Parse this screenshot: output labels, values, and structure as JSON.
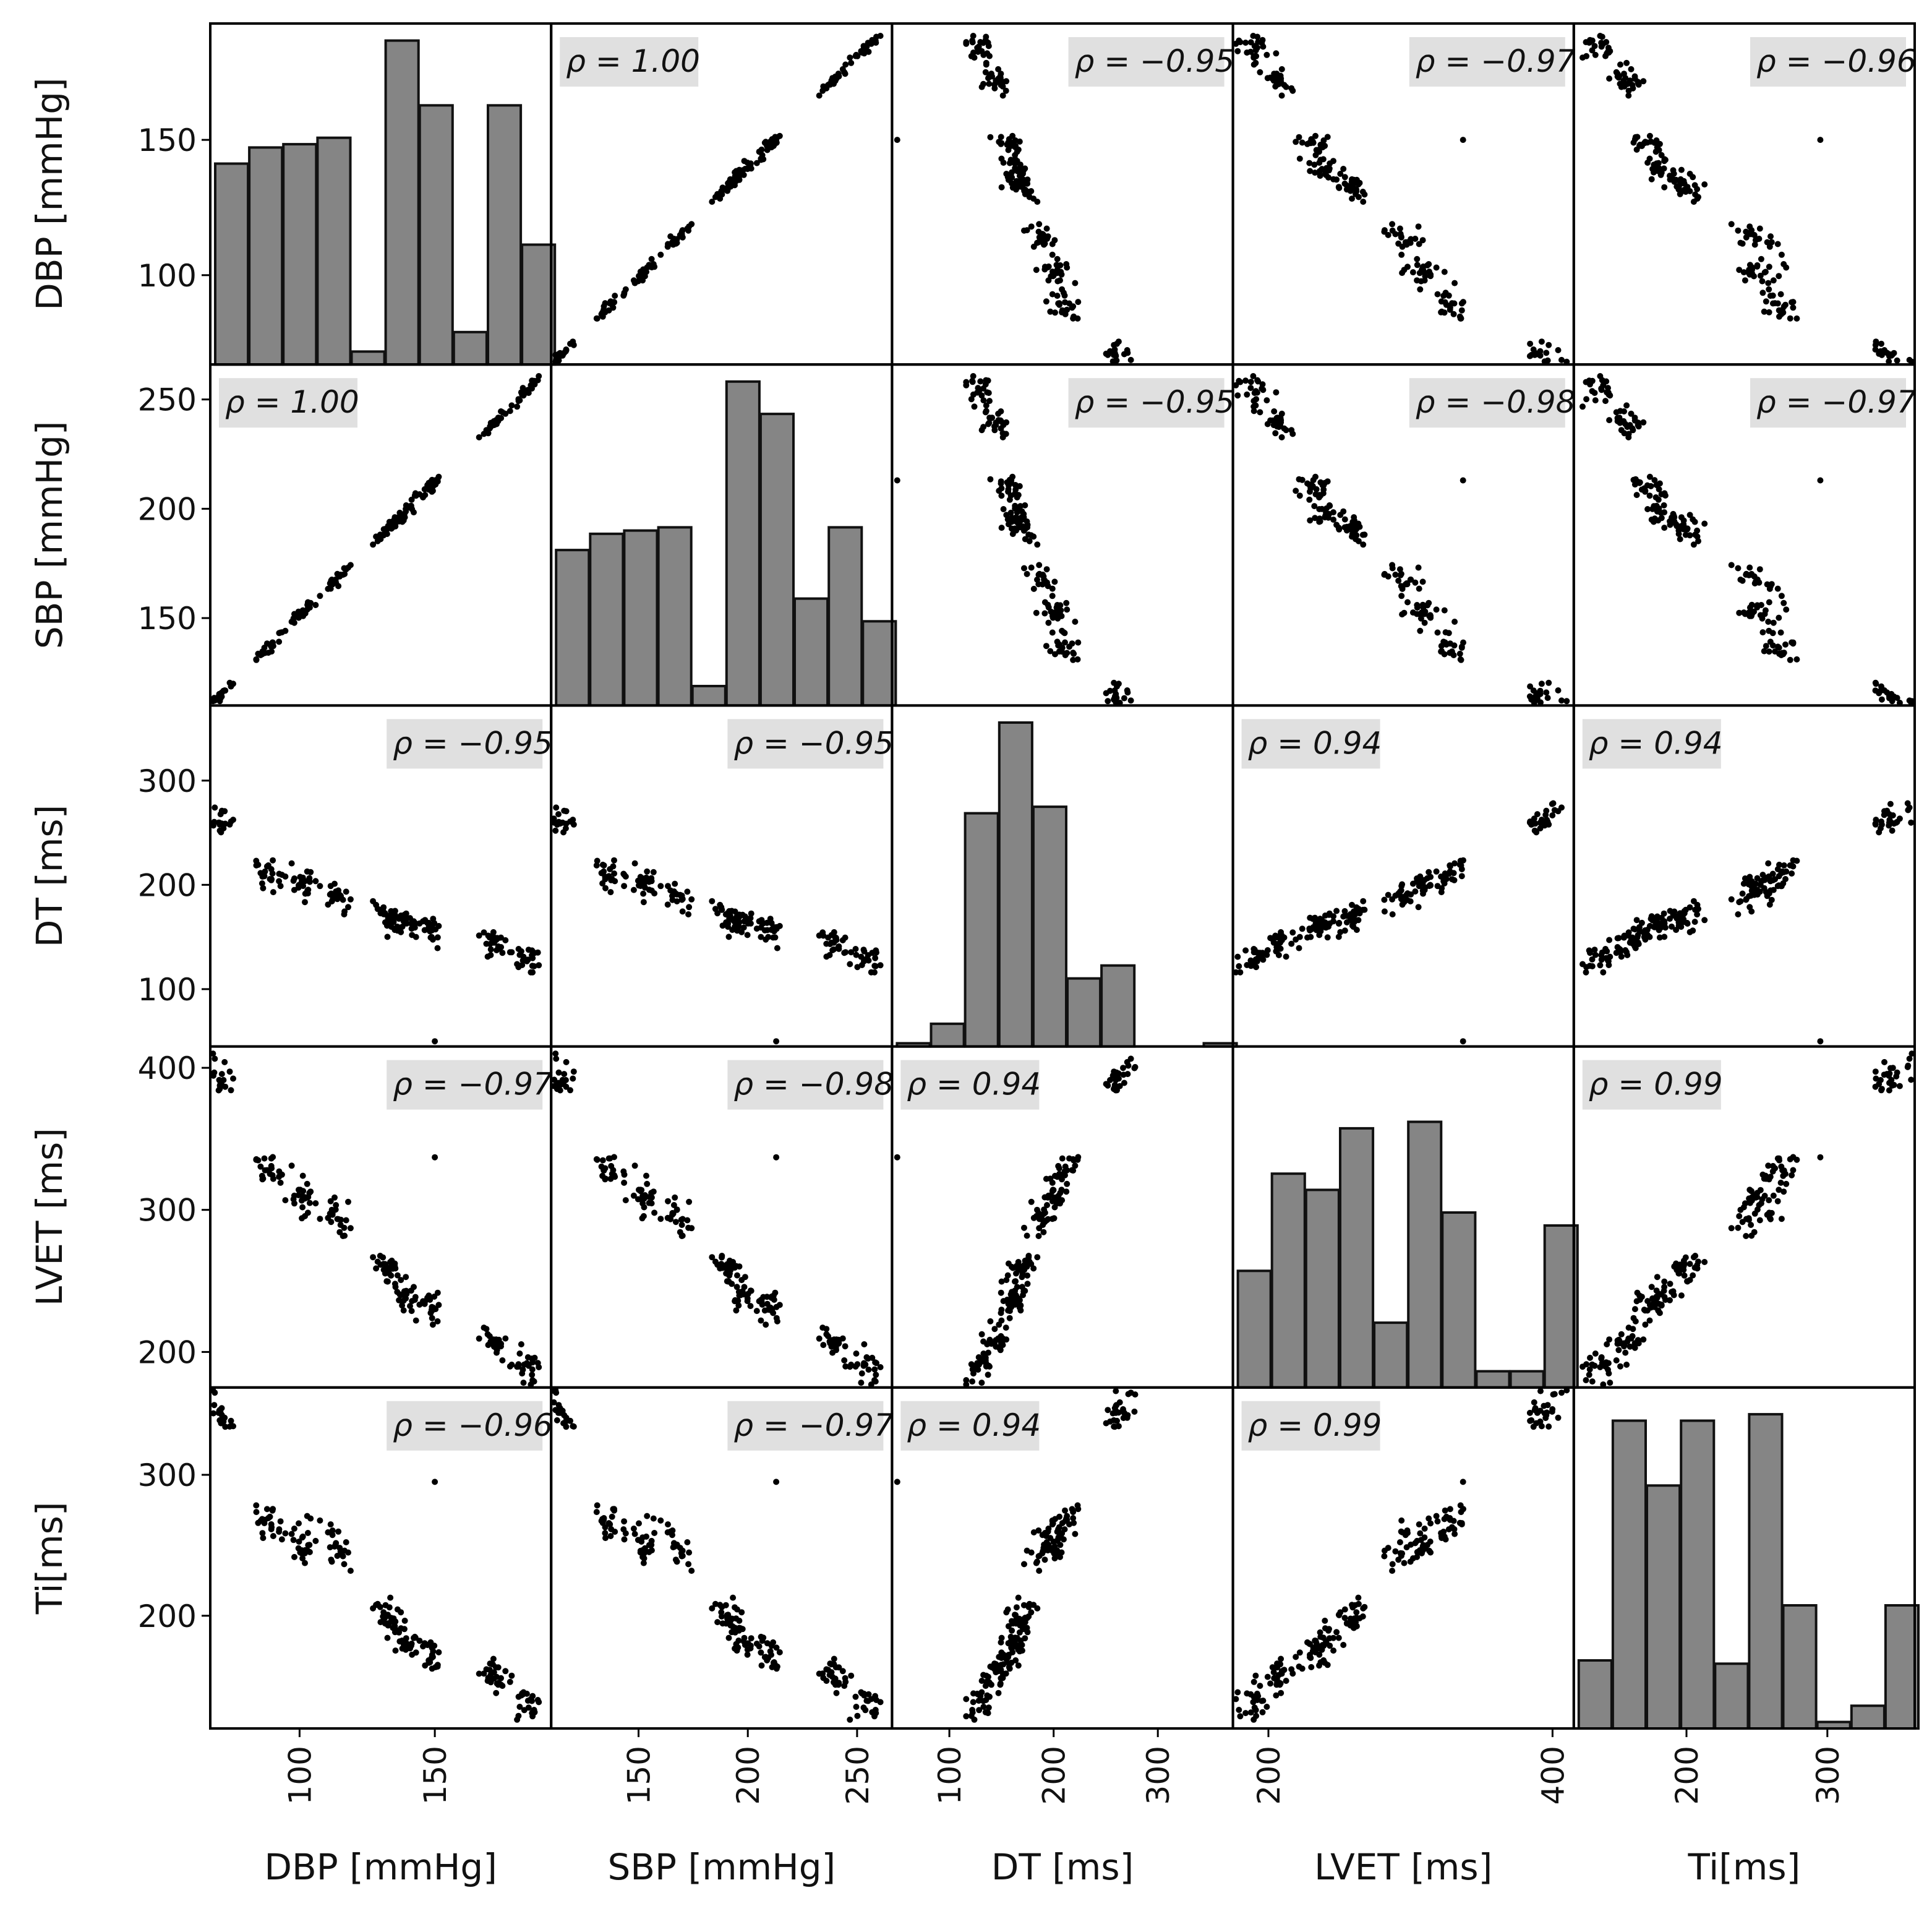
{
  "chart_data": {
    "type": "scatter",
    "title": "",
    "variables": [
      {
        "key": "DBP",
        "label": "DBP [mmHg]",
        "range": [
          67,
          193
        ],
        "ticks": [
          100,
          150
        ]
      },
      {
        "key": "SBP",
        "label": "SBP [mmHg]",
        "range": [
          110,
          266
        ],
        "ticks": [
          150,
          200,
          250
        ]
      },
      {
        "key": "DT",
        "label": "DT [ms]",
        "range": [
          45,
          372
        ],
        "ticks": [
          100,
          200,
          300
        ]
      },
      {
        "key": "LVET",
        "label": "LVET [ms]",
        "range": [
          175,
          415
        ],
        "ticks": [
          200,
          300,
          400
        ]
      },
      {
        "key": "Ti",
        "label": "Ti[ms]",
        "range": [
          120,
          362
        ],
        "ticks": [
          200,
          300
        ]
      }
    ],
    "x_tick_overrides": {
      "LVET": [
        200,
        400
      ]
    },
    "correlations": [
      [
        "",
        "1.00",
        "−0.95",
        "−0.97",
        "−0.96"
      ],
      [
        "1.00",
        "",
        "−0.95",
        "−0.98",
        "−0.97"
      ],
      [
        "−0.95",
        "−0.95",
        "",
        "0.94",
        "0.94"
      ],
      [
        "−0.97",
        "−0.98",
        "0.94",
        "",
        "0.99"
      ],
      [
        "−0.96",
        "−0.97",
        "0.94",
        "0.99",
        ""
      ]
    ],
    "correlation_prefix": "ρ = ",
    "histograms": {
      "DBP": [
        0.62,
        0.67,
        0.68,
        0.7,
        0.04,
        1.0,
        0.8,
        0.1,
        0.8,
        0.37
      ],
      "SBP": [
        0.48,
        0.53,
        0.54,
        0.55,
        0.06,
        1.0,
        0.9,
        0.33,
        0.55,
        0.26
      ],
      "DT": [
        0.01,
        0.07,
        0.72,
        1.0,
        0.74,
        0.21,
        0.25,
        0.0,
        0.0,
        0.01
      ],
      "LVET": [
        0.36,
        0.66,
        0.61,
        0.8,
        0.2,
        0.82,
        0.54,
        0.05,
        0.05,
        0.5
      ],
      "Ti": [
        0.21,
        0.95,
        0.75,
        0.95,
        0.2,
        0.97,
        0.38,
        0.02,
        0.07,
        0.38
      ]
    },
    "clusters": [
      {
        "DBP": 70,
        "SBP": 114,
        "DT": 262,
        "LVET": 392,
        "Ti": 343,
        "n": 26
      },
      {
        "DBP": 88,
        "SBP": 139,
        "DT": 212,
        "LVET": 330,
        "Ti": 268,
        "n": 22
      },
      {
        "DBP": 101,
        "SBP": 158,
        "DT": 200,
        "LVET": 309,
        "Ti": 252,
        "n": 24
      },
      {
        "DBP": 113,
        "SBP": 171,
        "DT": 190,
        "LVET": 297,
        "Ti": 248,
        "n": 24
      },
      {
        "DBP": 132,
        "SBP": 197,
        "DT": 170,
        "LVET": 260,
        "Ti": 198,
        "n": 30
      },
      {
        "DBP": 140,
        "SBP": 206,
        "DT": 164,
        "LVET": 240,
        "Ti": 184,
        "n": 26
      },
      {
        "DBP": 148,
        "SBP": 212,
        "DT": 158,
        "LVET": 232,
        "Ti": 170,
        "n": 20
      },
      {
        "DBP": 172,
        "SBP": 238,
        "DT": 144,
        "LVET": 208,
        "Ti": 158,
        "n": 26
      },
      {
        "DBP": 184,
        "SBP": 254,
        "DT": 128,
        "LVET": 188,
        "Ti": 138,
        "n": 24
      }
    ],
    "outliers": [
      {
        "DBP": 150,
        "SBP": 213,
        "DT": 50,
        "LVET": 337,
        "Ti": 295
      },
      {
        "DBP": 68,
        "SBP": 112,
        "DT": 370,
        "LVET": 410,
        "Ti": 360
      }
    ],
    "grid": false,
    "legend": "none"
  }
}
